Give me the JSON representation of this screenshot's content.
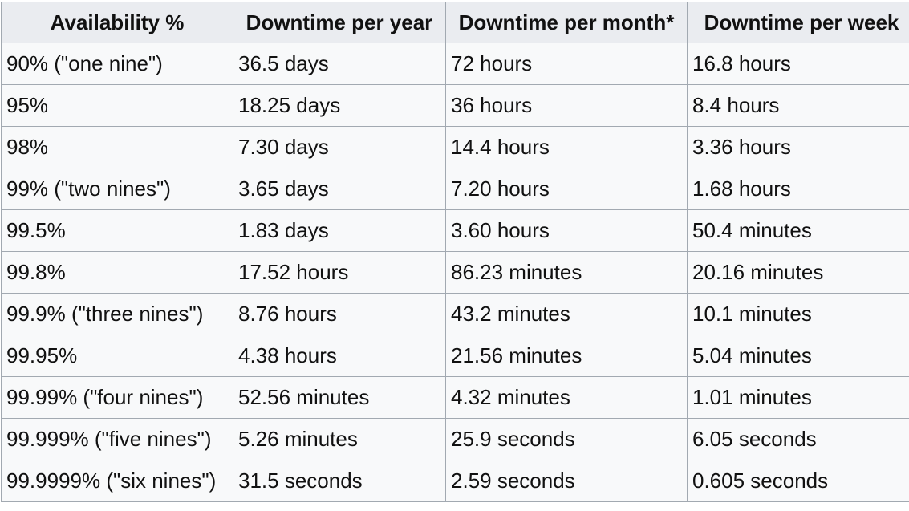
{
  "table": {
    "headers": [
      "Availability %",
      "Downtime per year",
      "Downtime per month*",
      "Downtime per week"
    ],
    "rows": [
      [
        "90% (\"one nine\")",
        "36.5 days",
        "72 hours",
        "16.8 hours"
      ],
      [
        "95%",
        "18.25 days",
        "36 hours",
        "8.4 hours"
      ],
      [
        "98%",
        "7.30 days",
        "14.4 hours",
        "3.36 hours"
      ],
      [
        "99% (\"two nines\")",
        "3.65 days",
        "7.20 hours",
        "1.68 hours"
      ],
      [
        "99.5%",
        "1.83 days",
        "3.60 hours",
        "50.4 minutes"
      ],
      [
        "99.8%",
        "17.52 hours",
        "86.23 minutes",
        "20.16 minutes"
      ],
      [
        "99.9% (\"three nines\")",
        "8.76 hours",
        "43.2 minutes",
        "10.1 minutes"
      ],
      [
        "99.95%",
        "4.38 hours",
        "21.56 minutes",
        "5.04 minutes"
      ],
      [
        "99.99% (\"four nines\")",
        "52.56 minutes",
        "4.32 minutes",
        "1.01 minutes"
      ],
      [
        "99.999% (\"five nines\")",
        "5.26 minutes",
        "25.9 seconds",
        "6.05 seconds"
      ],
      [
        "99.9999% (\"six nines\")",
        "31.5 seconds",
        "2.59 seconds",
        "0.605 seconds"
      ]
    ]
  }
}
